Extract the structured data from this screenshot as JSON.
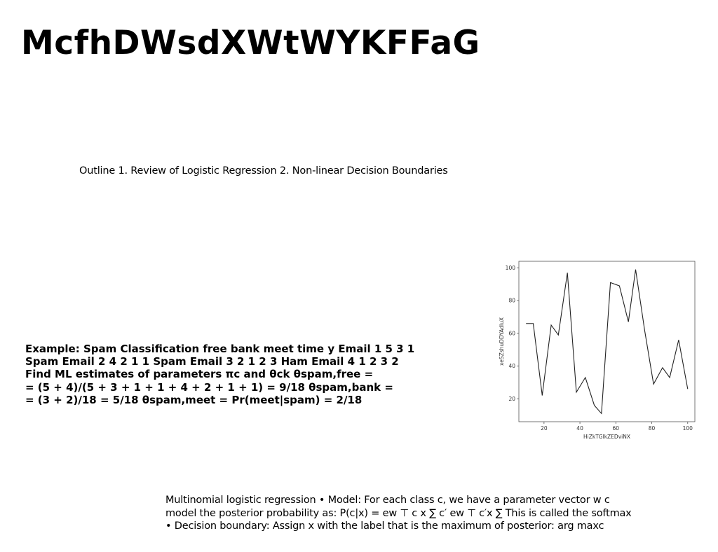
{
  "slide": {
    "title": "McfhDWsdXWtWYKFFaG",
    "outline": "Outline 1. Review of Logistic Regression 2. Non-linear Decision Boundaries",
    "example_lines": [
      "Example: Spam Classification free bank meet time y Email 1 5 3 1",
      "Spam Email 2 4 2 1 1 Spam Email 3 2 1 2 3 Ham Email 4 1 2 3 2",
      "Find ML estimates of parameters πc and θck θspam,free =",
      "= (5 + 4)/(5 + 3 + 1 + 1 + 4 + 2 + 1 + 1) = 9/18 θspam,bank =",
      "= (3 + 2)/18 = 5/18 θspam,meet = Pr(meet|spam) = 2/18"
    ],
    "multinomial_lines": [
      "Multinomial logistic regression • Model: For each class c, we have a parameter vector w c",
      "model the posterior probability as: P(c|x) = ew ⊤ c x ∑ c′ ew ⊤ c′x ∑ This is called the softmax",
      "• Decision boundary: Assign x with the label that is the maximum of posterior: arg maxc"
    ]
  },
  "chart_data": {
    "type": "line",
    "xlabel": "HiZkTGlkZEDviNX",
    "ylabel": "xeSZshuDDYAdluX",
    "xlim": [
      6,
      104
    ],
    "ylim": [
      6,
      104
    ],
    "xticks": [
      20,
      40,
      60,
      80,
      100
    ],
    "yticks": [
      20,
      40,
      60,
      80,
      100
    ],
    "grid": false,
    "series": [
      {
        "color": "#222222",
        "x": [
          10,
          14,
          19,
          24,
          28,
          33,
          38,
          43,
          48,
          52,
          57,
          62,
          67,
          71,
          76,
          81,
          86,
          90,
          95,
          100
        ],
        "y": [
          66,
          66,
          22,
          65,
          59,
          97,
          24,
          33,
          16,
          11,
          91,
          89,
          67,
          99,
          62,
          29,
          39,
          33,
          56,
          26
        ]
      }
    ]
  }
}
